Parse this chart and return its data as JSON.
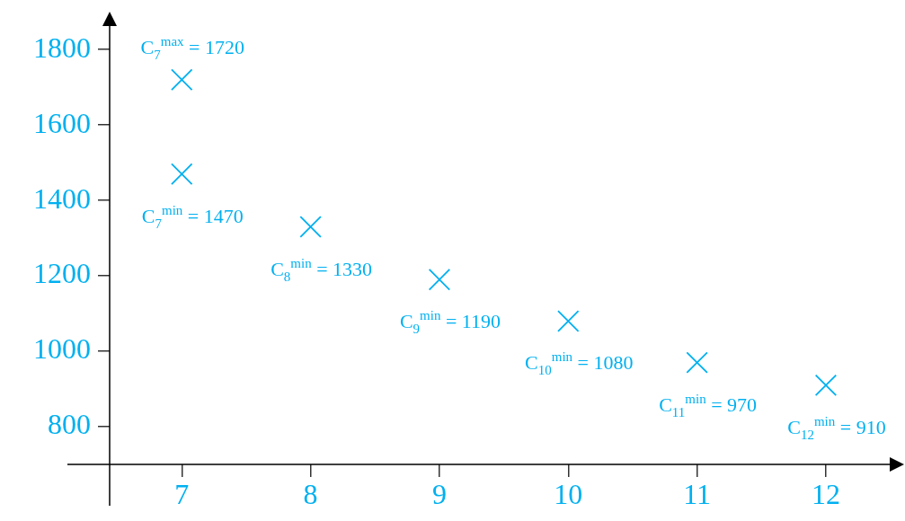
{
  "chart_data": {
    "type": "scatter",
    "marker": "cross",
    "grid": false,
    "legend": false,
    "xlim": [
      6.44,
      12.49
    ],
    "ylim": [
      700,
      1860
    ],
    "xticks": [
      7,
      8,
      9,
      10,
      11,
      12
    ],
    "yticks": [
      800,
      1000,
      1200,
      1400,
      1600,
      1800
    ],
    "series": [
      {
        "color": "#00b0f0",
        "x": [
          7
        ],
        "values": [
          1720
        ],
        "value_labels": [
          "C$_{7}$$^{max}$ = 1720"
        ]
      },
      {
        "color": "#00b0f0",
        "x": [
          7,
          8,
          9,
          10,
          11,
          12
        ],
        "values": [
          1470,
          1330,
          1190,
          1080,
          970,
          910
        ],
        "value_labels": [
          "C$_{7}$$^{min}$ = 1470",
          "C$_{8}$$^{min}$ = 1330",
          "C$_{9}$$^{min}$ = 1190",
          "C$_{10}$$^{min}$ = 1080",
          "C$_{11}$$^{min}$ = 970",
          "C$_{12}$$^{min}$ = 910"
        ]
      }
    ]
  }
}
